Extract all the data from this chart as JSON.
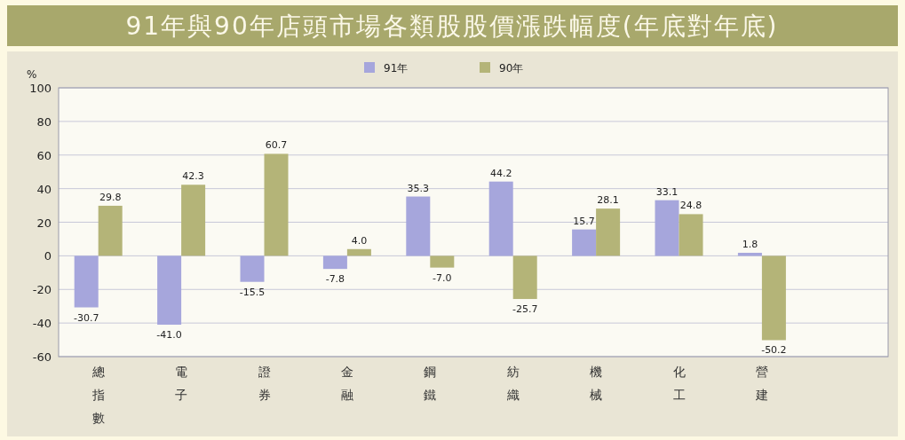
{
  "chart_data": {
    "type": "bar",
    "title": "91年與90年店頭市場各類股股價漲跌幅度(年底對年底)",
    "ylabel": "%",
    "categories": [
      "總指數",
      "電子",
      "證券",
      "金融",
      "鋼鐵",
      "紡織",
      "機械",
      "化工",
      "營建"
    ],
    "series": [
      {
        "name": "91年",
        "color": "#a6a6dc",
        "values": [
          -30.7,
          -41.0,
          -15.5,
          -7.8,
          35.3,
          44.2,
          15.7,
          33.1,
          1.8
        ],
        "value_labels": [
          "-30.7",
          "-41.0",
          "-15.5",
          "-7.8",
          "35.3",
          "44.2",
          "15.7",
          "33.1",
          "1.8"
        ]
      },
      {
        "name": "90年",
        "color": "#b4b478",
        "values": [
          29.8,
          42.3,
          60.7,
          4.0,
          -7.0,
          -25.7,
          28.1,
          24.8,
          -50.2
        ],
        "value_labels": [
          "29.8",
          "42.3",
          "60.7",
          "4.0",
          "-7.0",
          "-25.7",
          "28.1",
          "24.8",
          "-50.2"
        ]
      }
    ],
    "ylim": [
      -60,
      100
    ],
    "yticks": [
      -60,
      -40,
      -20,
      0,
      20,
      40,
      60,
      80,
      100
    ],
    "grid": "y",
    "legend": "top"
  }
}
